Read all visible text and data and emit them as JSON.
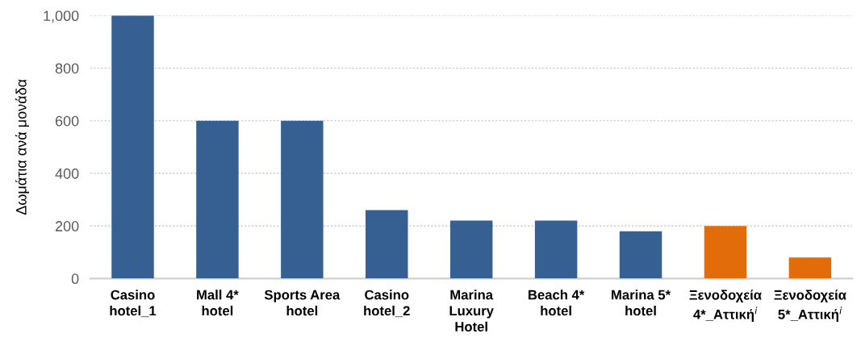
{
  "chart_data": {
    "type": "bar",
    "ylabel": "Δωμάτια ανά μονάδα",
    "categories": [
      "Casino\nhotel_1",
      "Mall 4*\nhotel",
      "Sports Area\nhotel",
      "Casino\nhotel_2",
      "Marina\nLuxury\nHotel",
      "Beach 4*\nhotel",
      "Marina 5*\nhotel",
      "Ξενοδοχεία\n4*_Αττική$^{i}$",
      "Ξενοδοχεία\n5*_Αττική$^{i}$"
    ],
    "values": [
      1000,
      600,
      600,
      260,
      220,
      220,
      180,
      200,
      80
    ],
    "colors": [
      "#356091",
      "#356091",
      "#356091",
      "#356091",
      "#356091",
      "#356091",
      "#356091",
      "#e36c0a",
      "#e36c0a"
    ],
    "ylim": [
      0,
      1000
    ],
    "yticks": [
      0,
      200,
      400,
      600,
      800,
      {
        "value": 1000,
        "label": "1,000"
      }
    ],
    "grid": "y"
  }
}
